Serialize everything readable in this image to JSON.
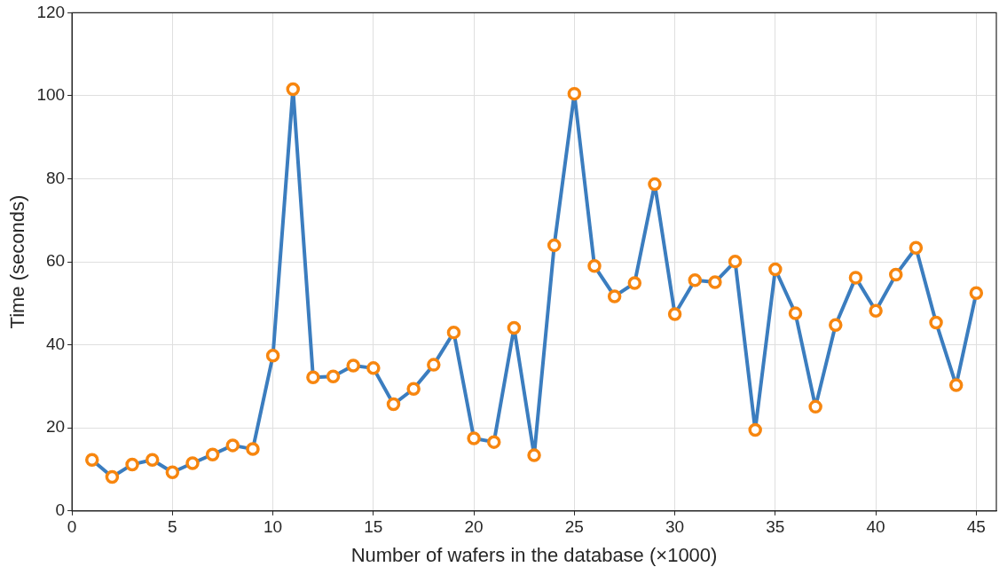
{
  "chart_data": {
    "type": "line",
    "xlabel": "Number of wafers in the database (×1000)",
    "ylabel": "Time (seconds)",
    "x": [
      1,
      2,
      3,
      4,
      5,
      6,
      7,
      8,
      9,
      10,
      11,
      12,
      13,
      14,
      15,
      16,
      17,
      18,
      19,
      20,
      21,
      22,
      23,
      24,
      25,
      26,
      27,
      28,
      29,
      30,
      31,
      32,
      33,
      34,
      35,
      36,
      37,
      38,
      39,
      40,
      41,
      42,
      43,
      44,
      45
    ],
    "series": [
      {
        "color": "#3b7dbf",
        "colors": [
          "#f7860f",
          "#f7860f",
          "#f7860f",
          "#f7860f",
          "#f7860f",
          "#f7860f",
          "#f7860f",
          "#f7860f",
          "#f7860f",
          "#f7860f",
          "#f7860f",
          "#f7860f",
          "#f7860f",
          "#f7860f",
          "#f7860f",
          "#f7860f",
          "#f7860f",
          "#f7860f",
          "#f7860f",
          "#f7860f",
          "#f7860f",
          "#f7860f",
          "#f7860f",
          "#f7860f",
          "#f7860f",
          "#f7860f",
          "#f7860f",
          "#f7860f",
          "#f7860f",
          "#f7860f",
          "#f7860f",
          "#f7860f",
          "#f7860f",
          "#f7860f",
          "#f7860f",
          "#f7860f",
          "#f7860f",
          "#f7860f",
          "#f7860f",
          "#f7860f",
          "#f7860f",
          "#f7860f",
          "#f7860f",
          "#f7860f",
          "#f7860f"
        ],
        "values": [
          12.3,
          8.2,
          11.2,
          12.3,
          9.3,
          11.5,
          13.6,
          15.8,
          14.9,
          37.4,
          101.6,
          32.2,
          32.4,
          35.0,
          34.4,
          25.7,
          29.4,
          35.2,
          43.0,
          17.5,
          16.6,
          44.1,
          13.4,
          64.0,
          100.5,
          59.0,
          51.7,
          54.9,
          78.7,
          47.4,
          55.6,
          55.1,
          60.1,
          19.5,
          58.2,
          47.6,
          25.1,
          44.8,
          56.2,
          48.2,
          56.9,
          63.4,
          45.4,
          30.3,
          52.5
        ]
      }
    ],
    "xlim": [
      0,
      46
    ],
    "xticks": [
      0,
      5,
      10,
      15,
      20,
      25,
      30,
      35,
      40,
      45
    ],
    "ylim": [
      0,
      120
    ],
    "yticks": [
      0,
      20,
      40,
      60,
      80,
      100,
      120
    ],
    "grid": true,
    "legend": false,
    "marker": "circle",
    "line_style": "solid"
  }
}
